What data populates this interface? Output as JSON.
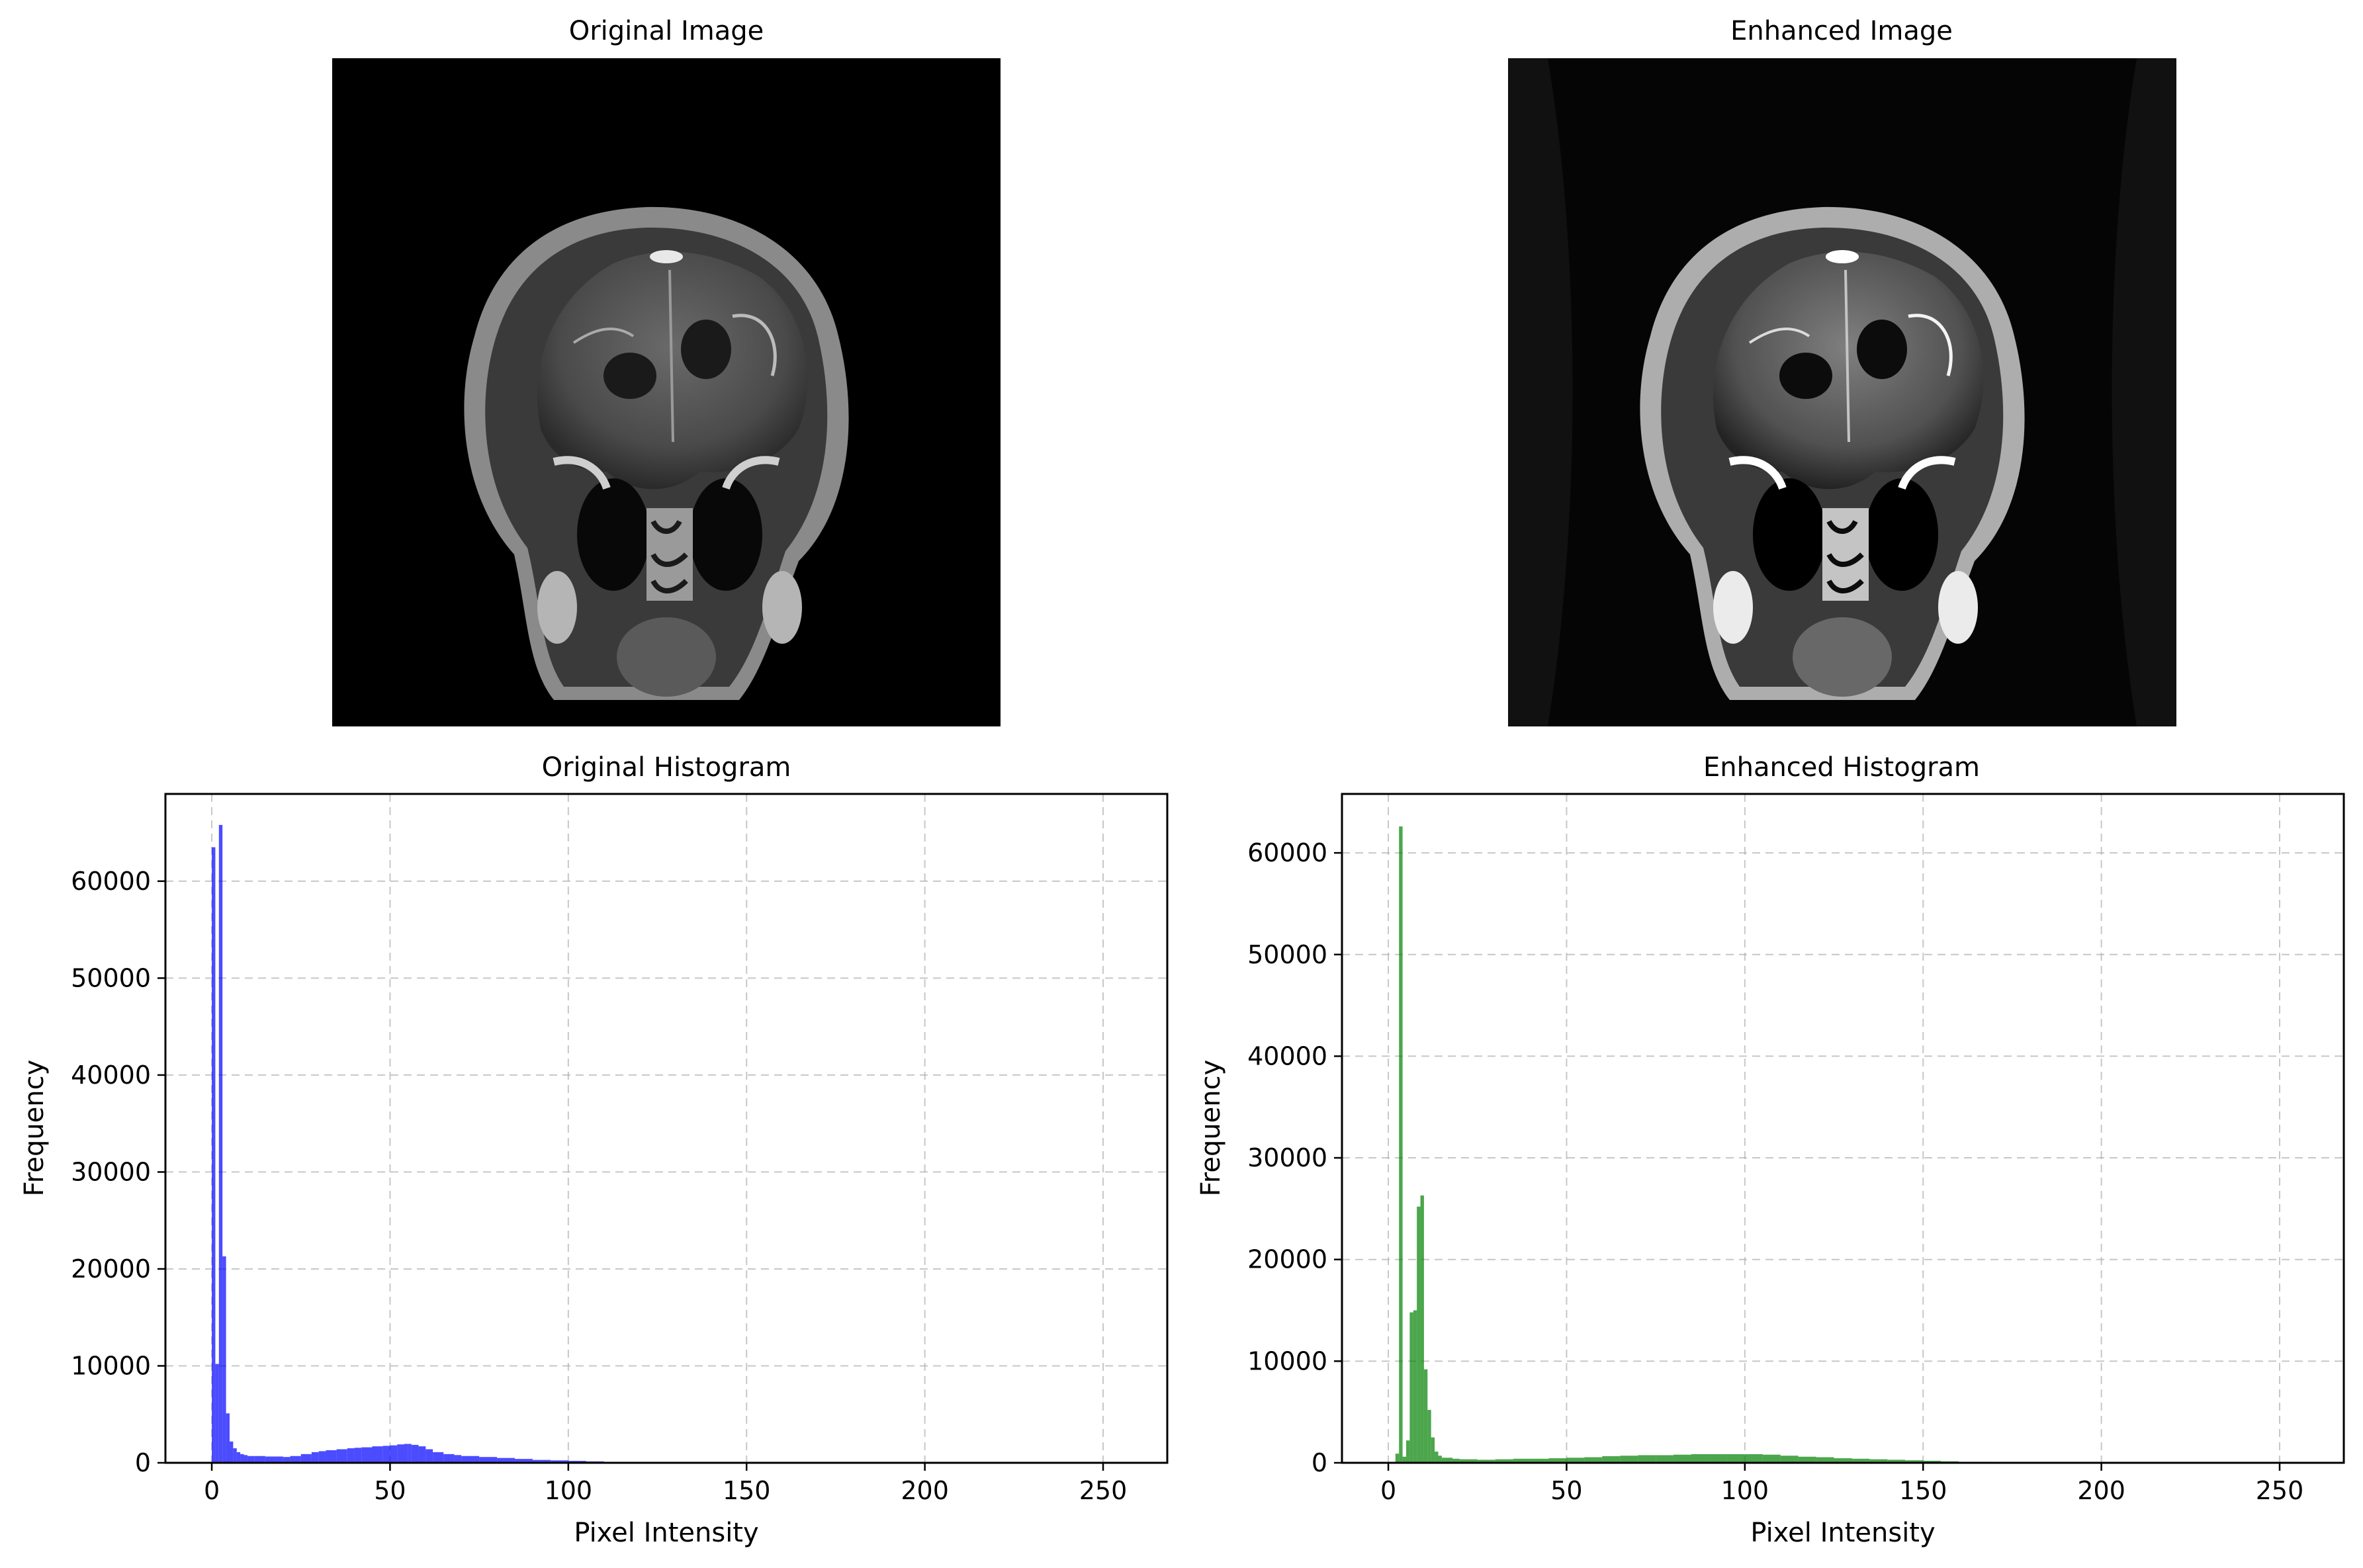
{
  "panels": {
    "original_image": {
      "title": "Original Image",
      "image": "mri-coronal-head-original"
    },
    "enhanced_image": {
      "title": "Enhanced Image",
      "image": "mri-coronal-head-enhanced"
    }
  },
  "colors": {
    "original": "#0000ff",
    "enhanced": "#008000",
    "grid": "#b0b0b0"
  },
  "chart_data": [
    {
      "type": "bar",
      "title": "Original Histogram",
      "xlabel": "Pixel Intensity",
      "ylabel": "Frequency",
      "xlim": [
        -13,
        268
      ],
      "ylim": [
        0,
        69000
      ],
      "xticks": [
        0,
        50,
        100,
        150,
        200,
        250
      ],
      "yticks": [
        0,
        10000,
        20000,
        30000,
        40000,
        50000,
        60000
      ],
      "grid": true,
      "color": "#0000ff",
      "bin_width": 1,
      "bins": {
        "x": [
          0,
          1,
          2,
          3,
          4,
          5,
          6,
          7,
          8,
          9,
          10,
          12,
          15,
          18,
          20,
          22,
          25,
          28,
          30,
          32,
          35,
          38,
          40,
          42,
          45,
          48,
          50,
          52,
          54,
          55,
          56,
          58,
          60,
          62,
          65,
          68,
          70,
          75,
          80,
          85,
          90,
          95,
          100,
          105,
          110,
          115,
          120,
          125,
          130
        ],
        "y": [
          63500,
          10200,
          65800,
          21300,
          5100,
          2200,
          1500,
          1100,
          900,
          800,
          700,
          700,
          650,
          650,
          600,
          700,
          900,
          1100,
          1200,
          1300,
          1400,
          1500,
          1550,
          1600,
          1700,
          1750,
          1800,
          1900,
          1950,
          1950,
          1850,
          1700,
          1400,
          1100,
          900,
          800,
          700,
          600,
          500,
          400,
          300,
          250,
          200,
          150,
          100,
          80,
          60,
          40,
          20
        ]
      }
    },
    {
      "type": "bar",
      "title": "Enhanced Histogram",
      "xlabel": "Pixel Intensity",
      "ylabel": "Frequency",
      "xlim": [
        -13,
        268
      ],
      "ylim": [
        0,
        65800
      ],
      "xticks": [
        0,
        50,
        100,
        150,
        200,
        250
      ],
      "yticks": [
        0,
        10000,
        20000,
        30000,
        40000,
        50000,
        60000
      ],
      "grid": true,
      "color": "#008000",
      "bin_width": 1,
      "bins": {
        "x": [
          2,
          3,
          4,
          5,
          6,
          7,
          8,
          9,
          10,
          11,
          12,
          13,
          14,
          15,
          18,
          20,
          25,
          30,
          35,
          40,
          45,
          50,
          55,
          60,
          65,
          70,
          75,
          80,
          85,
          90,
          95,
          100,
          105,
          110,
          115,
          120,
          125,
          130,
          135,
          140,
          145,
          150,
          155,
          160,
          170,
          180,
          190
        ],
        "y": [
          900,
          62600,
          600,
          2200,
          14800,
          15000,
          25200,
          26300,
          9200,
          5200,
          2500,
          1100,
          700,
          500,
          400,
          350,
          300,
          350,
          400,
          400,
          450,
          500,
          550,
          650,
          700,
          750,
          750,
          800,
          850,
          850,
          850,
          850,
          800,
          700,
          600,
          550,
          450,
          400,
          350,
          300,
          250,
          200,
          150,
          100,
          60,
          30,
          10
        ]
      }
    }
  ]
}
